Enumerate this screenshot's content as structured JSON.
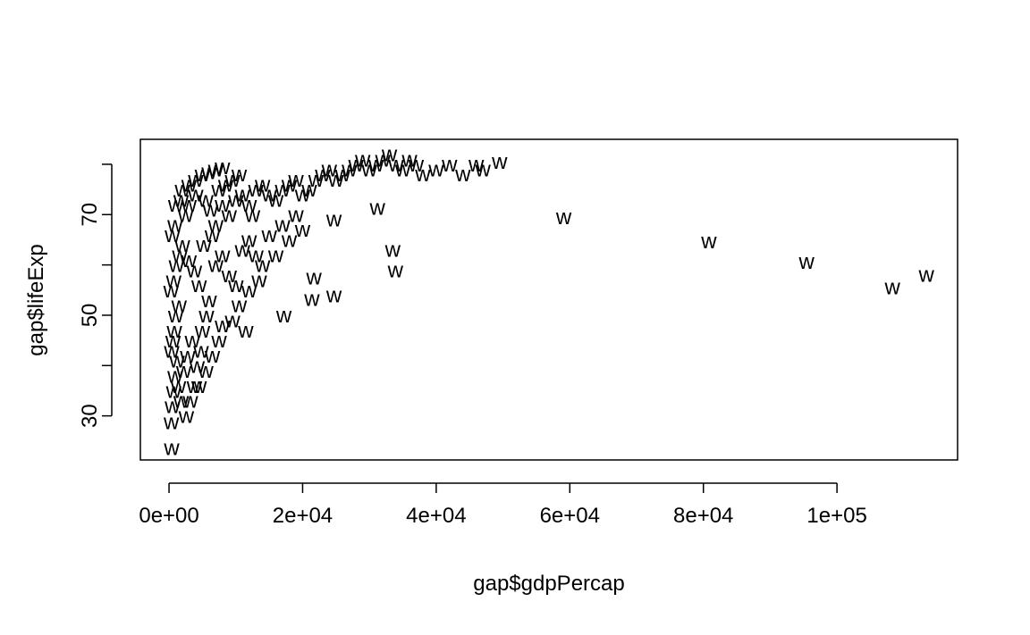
{
  "chart_data": {
    "type": "scatter",
    "marker": "w",
    "x_label": "gap$gdpPercap",
    "y_label": "gap$lifeExp",
    "xlim": [
      -4290,
      118054
    ],
    "ylim": [
      21.24,
      84.96
    ],
    "xticks": [
      {
        "value": 0,
        "label": "0e+00"
      },
      {
        "value": 20000,
        "label": "2e+04"
      },
      {
        "value": 40000,
        "label": "4e+04"
      },
      {
        "value": 60000,
        "label": "6e+04"
      },
      {
        "value": 80000,
        "label": "8e+04"
      },
      {
        "value": 100000,
        "label": "1e+05"
      }
    ],
    "yticks": [
      30,
      40,
      50,
      60,
      70,
      80
    ],
    "color": "#000000",
    "x": [
      350,
      500,
      700,
      900,
      1200,
      400,
      600,
      800,
      1000,
      1500,
      300,
      700,
      1100,
      1600,
      2000,
      500,
      900,
      2500,
      3000,
      1800,
      4000,
      2200,
      2800,
      3500,
      1400,
      1800,
      2600,
      3200,
      3800,
      4200,
      4800,
      5000,
      5600,
      6000,
      4500,
      3800,
      3000,
      5200,
      6500,
      7000,
      6200,
      5500,
      7500,
      8500,
      9500,
      10500,
      8000,
      9000,
      10000,
      11000,
      12000,
      12500,
      13000,
      14000,
      15000,
      16000,
      17000,
      18000,
      19000,
      20000,
      21000,
      22000,
      23000,
      24000,
      25000,
      26000,
      27000,
      28000,
      29000,
      30000,
      31000,
      32000,
      33000,
      34000,
      35000,
      36000,
      37000,
      38000,
      40000,
      42000,
      44000,
      46000,
      47000,
      49500,
      7000,
      8000,
      9000,
      10000,
      11000,
      12000,
      13000,
      14000,
      15000,
      16000,
      17000,
      18000,
      19000,
      20000,
      9500,
      10500,
      11500,
      12000,
      13500,
      7500,
      8000,
      6500,
      5500,
      4500,
      1000,
      2000,
      3000,
      4000,
      5000,
      6000,
      7000,
      8000,
      113400,
      108300,
      95460,
      80830,
      59100,
      400,
      33900,
      33500,
      31200,
      24700,
      21700,
      24700,
      21400,
      17200
    ],
    "y": [
      28.8,
      32,
      35,
      38,
      41,
      43,
      45,
      47,
      50,
      52,
      55,
      57,
      60,
      62,
      64,
      66,
      68,
      70,
      72,
      73,
      74,
      39,
      42,
      45,
      36,
      33,
      30,
      33,
      36,
      40,
      43,
      47,
      50,
      53,
      56,
      59,
      61,
      64,
      66,
      68,
      71,
      73,
      75,
      76,
      77,
      78,
      72,
      70,
      73,
      74,
      72,
      70,
      75,
      76,
      74,
      73,
      75,
      76,
      77,
      74,
      75,
      77,
      78,
      79,
      77,
      78,
      79,
      80,
      81,
      79,
      80,
      81,
      82,
      80,
      79,
      81,
      80,
      78,
      79,
      80,
      78,
      80,
      79,
      80.5,
      60,
      62,
      58,
      56,
      63,
      65,
      62,
      60,
      66,
      62,
      68,
      65,
      70,
      67,
      49,
      52,
      47,
      55,
      57,
      45,
      48,
      42,
      39,
      36,
      72,
      75,
      76,
      77,
      78,
      78.5,
      79,
      79.5,
      58.1,
      55.6,
      60.6,
      64.7,
      69.5,
      23.6,
      59,
      63,
      71.4,
      69.1,
      57.5,
      54,
      53.3,
      50
    ]
  }
}
